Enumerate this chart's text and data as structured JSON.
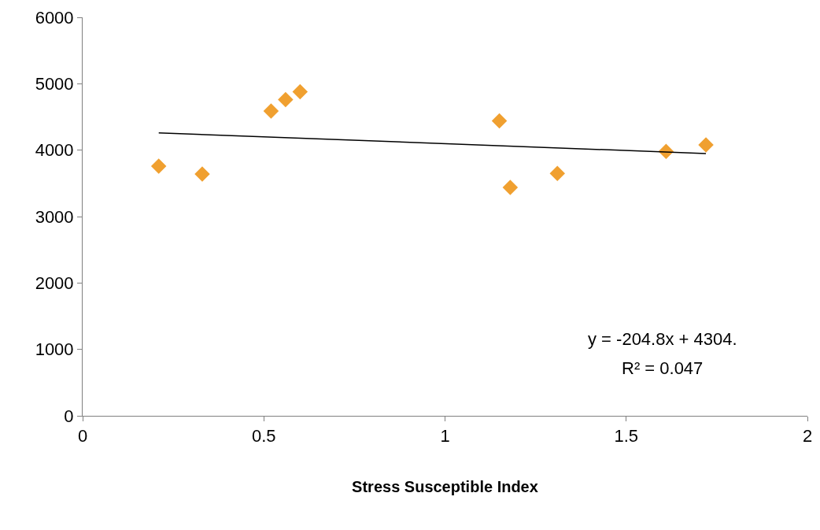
{
  "chart_data": {
    "type": "scatter",
    "xlabel": "Stress Susceptible Index",
    "series": [
      {
        "color": "#f0a030",
        "marker": "diamond",
        "x": [
          0.21,
          0.33,
          0.52,
          0.56,
          0.6,
          1.15,
          1.18,
          1.31,
          1.61,
          1.72
        ],
        "values": [
          3760,
          3640,
          4590,
          4760,
          4880,
          4440,
          3440,
          3650,
          3980,
          4080
        ]
      },
      {
        "type": "line",
        "color": "#000000",
        "marker": "none",
        "line_style": "solid",
        "x": [
          0.21,
          1.72
        ],
        "values": [
          4260,
          3950
        ]
      }
    ],
    "annotations": [
      "y = -204.8x + 4304.",
      "R² = 0.047"
    ],
    "xlim": [
      0,
      2
    ],
    "xticks": [
      0,
      0.5,
      1,
      1.5,
      2
    ],
    "ylim": [
      0,
      6000
    ],
    "yticks": [
      0,
      1000,
      2000,
      3000,
      4000,
      5000,
      6000
    ]
  }
}
